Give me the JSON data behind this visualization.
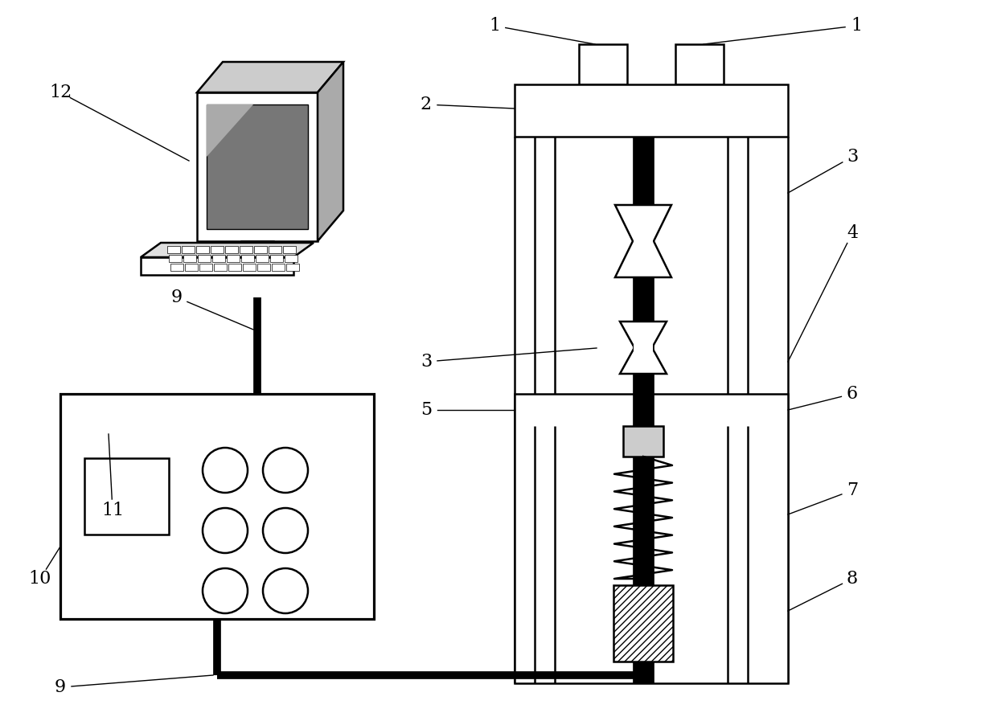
{
  "bg_color": "#ffffff",
  "line_color": "#000000",
  "lw": 1.8,
  "thick_lw": 7.0,
  "label_fs": 16
}
